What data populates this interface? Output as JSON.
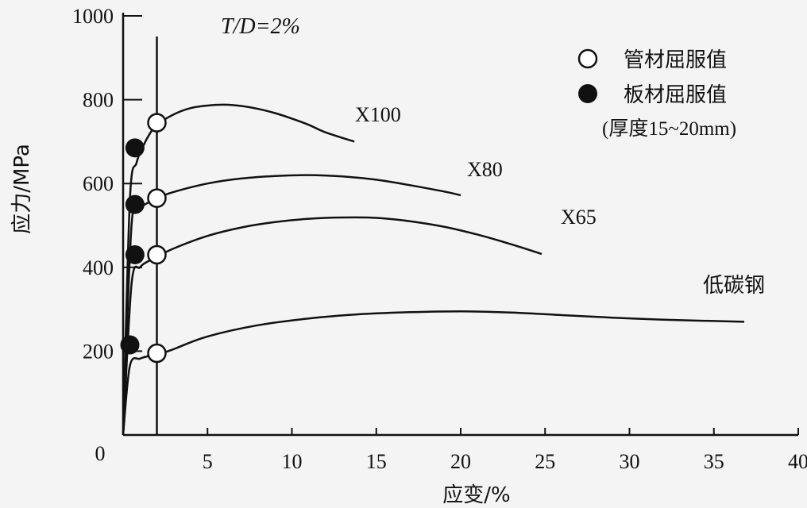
{
  "chart_data": {
    "type": "line",
    "xlabel": "应变/%",
    "ylabel": "应力/MPa",
    "xlim": [
      0,
      40
    ],
    "ylim": [
      0,
      1000
    ],
    "x_ticks": [
      "5",
      "10",
      "15",
      "20",
      "25",
      "30",
      "35",
      "40"
    ],
    "y_ticks": [
      "200",
      "400",
      "600",
      "800",
      "1000"
    ],
    "origin_label": "0",
    "annotation": "T/D=2%",
    "legend": {
      "placement": "top-right",
      "entries": [
        {
          "marker": "open-circle",
          "label": "管材屈服值"
        },
        {
          "marker": "filled-circle",
          "label": "板材屈服值"
        }
      ],
      "note": "(厚度15~20mm)"
    },
    "series": [
      {
        "name": "X100",
        "x": [
          0,
          0.4,
          0.8,
          1.2,
          1.6,
          2.0,
          3.0,
          4.0,
          5.0,
          6.0,
          7.0,
          8.0,
          9.0,
          10.0,
          11.0,
          12.0,
          13.7
        ],
        "y": [
          0,
          560,
          650,
          690,
          720,
          740,
          765,
          780,
          786,
          788,
          785,
          778,
          768,
          755,
          740,
          722,
          700
        ]
      },
      {
        "name": "X80",
        "x": [
          0,
          0.5,
          1.0,
          1.5,
          2.0,
          3.0,
          5.0,
          7.0,
          9.0,
          11.0,
          13.0,
          15.0,
          17.0,
          19.0,
          20.0
        ],
        "y": [
          0,
          500,
          540,
          555,
          565,
          580,
          600,
          612,
          618,
          620,
          617,
          609,
          596,
          581,
          572
        ]
      },
      {
        "name": "X65",
        "x": [
          0,
          0.5,
          1.0,
          1.5,
          2.0,
          3.0,
          5.0,
          7.0,
          9.0,
          11.0,
          13.0,
          15.0,
          17.0,
          19.0,
          21.0,
          23.0,
          24.8
        ],
        "y": [
          0,
          360,
          400,
          415,
          425,
          445,
          475,
          495,
          508,
          516,
          519,
          518,
          510,
          497,
          478,
          455,
          432
        ]
      },
      {
        "name": "低碳钢",
        "x": [
          0,
          0.4,
          1.0,
          1.5,
          2.0,
          3.0,
          5.0,
          8.0,
          11.0,
          14.0,
          17.0,
          20.0,
          23.0,
          26.0,
          29.0,
          32.0,
          35.0,
          36.8
        ],
        "y": [
          0,
          165,
          182,
          188,
          191,
          205,
          235,
          262,
          278,
          288,
          293,
          295,
          292,
          286,
          280,
          275,
          272,
          270
        ]
      }
    ],
    "pipe_yield": {
      "x": [
        2.0,
        2.0,
        2.0,
        2.0
      ],
      "y": [
        745,
        565,
        430,
        195
      ]
    },
    "plate_yield": {
      "x": [
        0.7,
        0.7,
        0.7,
        0.4
      ],
      "y": [
        685,
        550,
        430,
        215
      ]
    },
    "strain_line_x": 2.0
  }
}
